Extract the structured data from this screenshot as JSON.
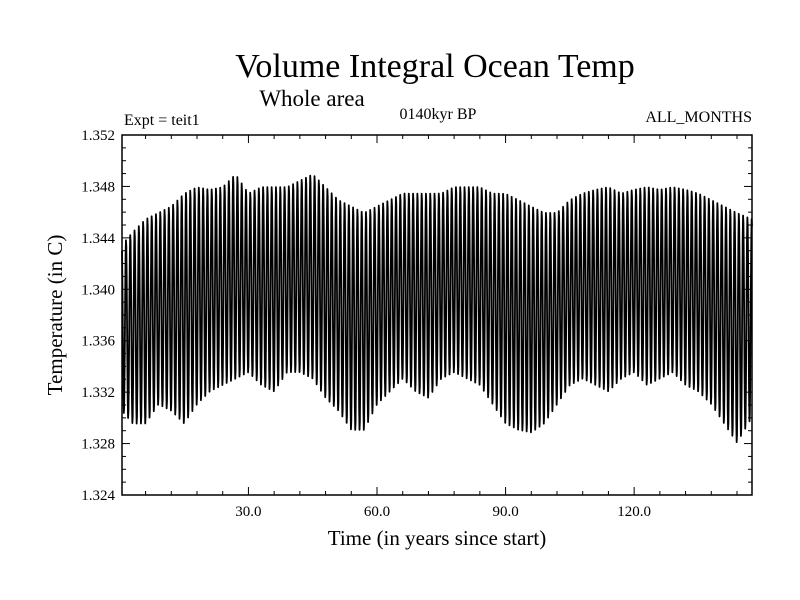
{
  "chart_data": {
    "type": "line",
    "title": "Volume Integral Ocean Temp",
    "subtitle": "Whole area",
    "annotations": {
      "experiment": "Expt = teit1",
      "period": "0140kyr BP",
      "months": "ALL_MONTHS"
    },
    "xlabel": "Time (in years since start)",
    "ylabel": "Temperature (in C)",
    "xlim": [
      0.5,
      147.5
    ],
    "ylim": [
      1.324,
      1.352
    ],
    "x_ticks": [
      30,
      60,
      90,
      120
    ],
    "x_tick_labels": [
      "30.0",
      "60.0",
      "90.0",
      "120.0"
    ],
    "y_ticks": [
      1.324,
      1.328,
      1.332,
      1.336,
      1.34,
      1.344,
      1.348,
      1.352
    ],
    "y_tick_labels": [
      "1.324",
      "1.328",
      "1.332",
      "1.336",
      "1.340",
      "1.344",
      "1.348",
      "1.352"
    ],
    "grid": false,
    "legend": "none",
    "series_color": "#000000",
    "series": [
      {
        "x": [
          0.5,
          3,
          6,
          9,
          12,
          15,
          18,
          21,
          24,
          27,
          30,
          33,
          36,
          39,
          42,
          45,
          48,
          51,
          54,
          57,
          60,
          63,
          66,
          69,
          72,
          75,
          78,
          81,
          84,
          87,
          90,
          93,
          96,
          99,
          102,
          105,
          108,
          111,
          114,
          117,
          120,
          123,
          126,
          129,
          132,
          135,
          138,
          141,
          144,
          147.5
        ],
        "annual_max": [
          1.3435,
          1.3445,
          1.3455,
          1.346,
          1.3465,
          1.3475,
          1.348,
          1.3478,
          1.348,
          1.349,
          1.3475,
          1.348,
          1.348,
          1.348,
          1.3485,
          1.349,
          1.348,
          1.347,
          1.3465,
          1.346,
          1.3465,
          1.347,
          1.3475,
          1.3475,
          1.3475,
          1.3475,
          1.348,
          1.348,
          1.348,
          1.3475,
          1.3475,
          1.347,
          1.3465,
          1.346,
          1.346,
          1.347,
          1.3475,
          1.3478,
          1.348,
          1.3475,
          1.3478,
          1.348,
          1.3478,
          1.348,
          1.3478,
          1.3475,
          1.347,
          1.3465,
          1.346,
          1.3455
        ],
        "annual_min": [
          1.3305,
          1.3295,
          1.3295,
          1.331,
          1.3305,
          1.3295,
          1.331,
          1.332,
          1.3325,
          1.333,
          1.3335,
          1.3325,
          1.332,
          1.3335,
          1.3335,
          1.333,
          1.3315,
          1.3305,
          1.329,
          1.329,
          1.331,
          1.332,
          1.333,
          1.332,
          1.3315,
          1.333,
          1.3335,
          1.333,
          1.3325,
          1.331,
          1.3295,
          1.329,
          1.3288,
          1.3295,
          1.331,
          1.3325,
          1.333,
          1.3325,
          1.332,
          1.333,
          1.3335,
          1.3325,
          1.333,
          1.3335,
          1.3325,
          1.332,
          1.331,
          1.3295,
          1.328,
          1.33
        ]
      }
    ]
  }
}
